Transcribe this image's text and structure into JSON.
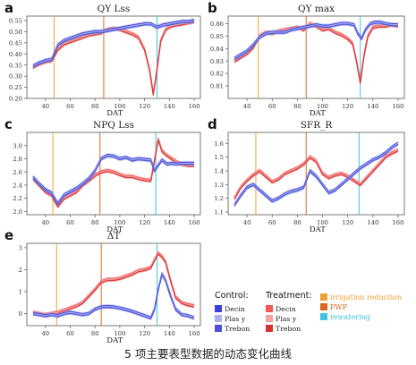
{
  "caption": "5 项主要表型数据的动态变化曲线",
  "legend": {
    "control_title": "Control:",
    "treatment_title": "Treatment:",
    "control_items": [
      "Decin",
      "Plas y",
      "Trebon"
    ],
    "treatment_items": [
      "Decin",
      "Plas y",
      "Trebon"
    ],
    "event_items": [
      "irrigation reduction",
      "PWP",
      "rewatering"
    ]
  },
  "colors": {
    "control": [
      "#3b3fe0",
      "#a9b2ee",
      "#4a50d6"
    ],
    "treatment": [
      "#f05a5a",
      "#f4a3a3",
      "#d83030"
    ],
    "irrigation_reduction": "#f0a030",
    "pwp": "#d8691f",
    "rewatering": "#3ec4e0"
  },
  "chart_data": [
    {
      "type": "line",
      "panel": "a",
      "title": "QY Lss",
      "xlabel": "DAT",
      "xlim": [
        25,
        165
      ],
      "xticks": [
        40,
        60,
        80,
        100,
        120,
        140,
        160
      ],
      "ylim": [
        0.2,
        0.57
      ],
      "yticks": [
        "0.55",
        "0.50",
        "0.45",
        "0.40",
        "0.35",
        "0.30",
        "0.25",
        "0.20"
      ],
      "events": {
        "irrigation_reduction": 47,
        "pwp": 87,
        "rewatering": 130
      },
      "control_x": [
        30,
        35,
        40,
        45,
        50,
        55,
        60,
        65,
        70,
        75,
        80,
        85,
        90,
        95,
        100,
        105,
        110,
        115,
        120,
        125,
        130,
        135,
        140,
        145,
        150,
        155,
        160
      ],
      "control_y": [
        0.345,
        0.36,
        0.37,
        0.375,
        0.44,
        0.46,
        0.47,
        0.48,
        0.49,
        0.495,
        0.5,
        0.5,
        0.505,
        0.51,
        0.515,
        0.52,
        0.525,
        0.53,
        0.535,
        0.535,
        0.52,
        0.53,
        0.535,
        0.54,
        0.545,
        0.545,
        0.55
      ],
      "treatment_x": [
        30,
        35,
        40,
        45,
        50,
        55,
        60,
        65,
        70,
        75,
        80,
        85,
        90,
        95,
        100,
        105,
        110,
        115,
        120,
        124,
        127,
        130,
        133,
        137,
        141,
        145,
        150,
        155,
        160
      ],
      "treatment_y": [
        0.34,
        0.355,
        0.365,
        0.37,
        0.42,
        0.445,
        0.455,
        0.465,
        0.475,
        0.485,
        0.49,
        0.495,
        0.51,
        0.515,
        0.51,
        0.5,
        0.49,
        0.475,
        0.42,
        0.33,
        0.22,
        0.33,
        0.46,
        0.51,
        0.525,
        0.53,
        0.535,
        0.54,
        0.545
      ]
    },
    {
      "type": "line",
      "panel": "b",
      "title": "QY max",
      "xlabel": "DAT",
      "xlim": [
        25,
        165
      ],
      "xticks": [
        40,
        60,
        80,
        100,
        120,
        140,
        160
      ],
      "ylim": [
        0.8,
        0.866
      ],
      "yticks": [
        "0.86",
        "0.85",
        "0.84",
        "0.83",
        "0.82",
        "0.81"
      ],
      "events": {
        "irrigation_reduction": 49,
        "pwp": 87,
        "rewatering": 130
      },
      "control_x": [
        30,
        35,
        40,
        45,
        50,
        55,
        60,
        65,
        70,
        75,
        80,
        85,
        90,
        95,
        100,
        105,
        110,
        115,
        120,
        125,
        128,
        131,
        134,
        138,
        142,
        146,
        150,
        155,
        160
      ],
      "control_y": [
        0.832,
        0.835,
        0.838,
        0.843,
        0.849,
        0.852,
        0.853,
        0.853,
        0.853,
        0.855,
        0.856,
        0.857,
        0.858,
        0.859,
        0.858,
        0.858,
        0.859,
        0.86,
        0.86,
        0.859,
        0.852,
        0.848,
        0.855,
        0.86,
        0.861,
        0.861,
        0.86,
        0.859,
        0.859
      ],
      "treatment_x": [
        30,
        35,
        40,
        45,
        50,
        55,
        60,
        65,
        70,
        75,
        80,
        85,
        90,
        95,
        100,
        105,
        110,
        115,
        120,
        124,
        127,
        130,
        133,
        136,
        140,
        145,
        150,
        155,
        160
      ],
      "treatment_y": [
        0.83,
        0.833,
        0.836,
        0.841,
        0.85,
        0.853,
        0.852,
        0.854,
        0.855,
        0.856,
        0.857,
        0.855,
        0.86,
        0.858,
        0.855,
        0.856,
        0.853,
        0.851,
        0.848,
        0.844,
        0.83,
        0.813,
        0.835,
        0.85,
        0.857,
        0.858,
        0.858,
        0.859,
        0.858
      ]
    },
    {
      "type": "line",
      "panel": "c",
      "title": "NPQ Lss",
      "xlabel": "DAT",
      "xlim": [
        25,
        165
      ],
      "xticks": [
        40,
        60,
        80,
        100,
        120,
        140,
        160
      ],
      "ylim": [
        1.95,
        3.2
      ],
      "yticks": [
        "3.0",
        "2.8",
        "2.6",
        "2.4",
        "2.2",
        "2.0"
      ],
      "events": {
        "irrigation_reduction": 46,
        "pwp": 84,
        "rewatering": 129
      },
      "control_x": [
        30,
        35,
        40,
        45,
        50,
        55,
        60,
        65,
        70,
        75,
        80,
        85,
        90,
        95,
        100,
        105,
        110,
        115,
        120,
        125,
        128,
        131,
        134,
        138,
        142,
        146,
        150,
        155,
        160
      ],
      "control_y": [
        2.52,
        2.42,
        2.33,
        2.28,
        2.12,
        2.25,
        2.3,
        2.35,
        2.42,
        2.5,
        2.62,
        2.8,
        2.85,
        2.84,
        2.8,
        2.82,
        2.78,
        2.8,
        2.79,
        2.78,
        2.62,
        2.7,
        2.78,
        2.72,
        2.73,
        2.72,
        2.73,
        2.73,
        2.73
      ],
      "treatment_x": [
        30,
        35,
        40,
        45,
        50,
        55,
        60,
        65,
        70,
        75,
        80,
        85,
        90,
        95,
        100,
        105,
        110,
        115,
        120,
        125,
        128,
        131,
        134,
        138,
        142,
        146,
        150,
        155,
        160
      ],
      "treatment_y": [
        2.5,
        2.4,
        2.3,
        2.25,
        2.08,
        2.2,
        2.25,
        2.3,
        2.4,
        2.47,
        2.55,
        2.6,
        2.62,
        2.6,
        2.56,
        2.53,
        2.53,
        2.5,
        2.48,
        2.47,
        2.78,
        3.1,
        2.92,
        2.85,
        2.8,
        2.75,
        2.72,
        2.7,
        2.7
      ]
    },
    {
      "type": "line",
      "panel": "d",
      "title": "SFR_R",
      "xlabel": "DAT",
      "xlim": [
        25,
        165
      ],
      "xticks": [
        40,
        60,
        80,
        100,
        120,
        140,
        160
      ],
      "ylim": [
        1.08,
        1.68
      ],
      "yticks": [
        "1.6",
        "1.5",
        "1.4",
        "1.3",
        "1.2",
        "1.1"
      ],
      "events": {
        "irrigation_reduction": 47,
        "pwp": 87,
        "rewatering": 129
      },
      "control_x": [
        30,
        35,
        40,
        45,
        50,
        55,
        60,
        65,
        70,
        75,
        80,
        85,
        90,
        95,
        100,
        105,
        110,
        115,
        120,
        125,
        130,
        135,
        140,
        145,
        150,
        155,
        160
      ],
      "control_y": [
        1.15,
        1.22,
        1.28,
        1.3,
        1.26,
        1.22,
        1.18,
        1.2,
        1.23,
        1.25,
        1.26,
        1.28,
        1.4,
        1.36,
        1.3,
        1.24,
        1.26,
        1.3,
        1.34,
        1.38,
        1.42,
        1.45,
        1.48,
        1.5,
        1.53,
        1.57,
        1.6
      ],
      "treatment_x": [
        30,
        35,
        40,
        45,
        50,
        55,
        60,
        65,
        70,
        75,
        80,
        85,
        90,
        95,
        100,
        105,
        110,
        115,
        120,
        125,
        130,
        135,
        140,
        145,
        150,
        155,
        160
      ],
      "treatment_y": [
        1.2,
        1.28,
        1.33,
        1.37,
        1.4,
        1.36,
        1.32,
        1.34,
        1.38,
        1.4,
        1.42,
        1.45,
        1.5,
        1.47,
        1.38,
        1.35,
        1.37,
        1.38,
        1.36,
        1.33,
        1.3,
        1.35,
        1.4,
        1.45,
        1.5,
        1.53,
        1.55
      ]
    },
    {
      "type": "line",
      "panel": "e",
      "title": "ΔT",
      "xlabel": "DAT",
      "xlim": [
        25,
        165
      ],
      "xticks": [
        40,
        60,
        80,
        100,
        120,
        140,
        160
      ],
      "ylim": [
        -0.55,
        3.2
      ],
      "yticks": [
        "3",
        "2",
        "1",
        "0"
      ],
      "events": {
        "irrigation_reduction": 49,
        "pwp": 85,
        "rewatering": 130
      },
      "control_x": [
        30,
        35,
        40,
        45,
        50,
        55,
        60,
        65,
        70,
        75,
        80,
        85,
        90,
        95,
        100,
        105,
        110,
        115,
        120,
        125,
        128,
        131,
        134,
        137,
        141,
        145,
        150,
        155,
        160
      ],
      "control_y": [
        0.0,
        -0.05,
        -0.1,
        -0.05,
        -0.1,
        0.0,
        0.05,
        0.0,
        -0.05,
        0.0,
        0.2,
        0.3,
        0.32,
        0.3,
        0.25,
        0.18,
        0.1,
        0.0,
        -0.1,
        -0.2,
        0.2,
        1.1,
        1.8,
        1.5,
        0.8,
        0.2,
        -0.05,
        -0.1,
        -0.2
      ],
      "treatment_x": [
        30,
        35,
        40,
        45,
        50,
        55,
        60,
        65,
        70,
        75,
        80,
        85,
        90,
        95,
        100,
        105,
        110,
        115,
        120,
        125,
        128,
        131,
        134,
        137,
        141,
        145,
        150,
        155,
        160
      ],
      "treatment_y": [
        0.05,
        0.0,
        -0.05,
        0.0,
        0.05,
        0.15,
        0.25,
        0.35,
        0.5,
        0.8,
        1.1,
        1.45,
        1.55,
        1.55,
        1.6,
        1.7,
        1.8,
        1.95,
        2.0,
        2.1,
        2.45,
        2.75,
        2.6,
        2.35,
        1.5,
        0.75,
        0.5,
        0.4,
        0.35
      ]
    }
  ]
}
